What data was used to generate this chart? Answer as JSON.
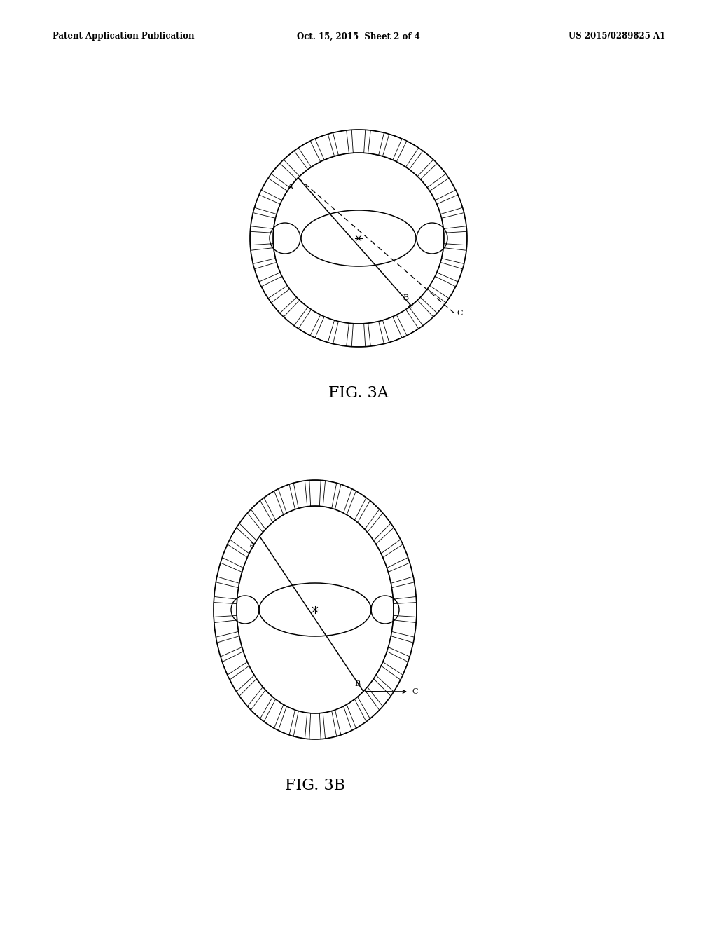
{
  "background_color": "#ffffff",
  "header_left": "Patent Application Publication",
  "header_center": "Oct. 15, 2015  Sheet 2 of 4",
  "header_right": "US 2015/0289825 A1",
  "fig3a_label": "FIG. 3A",
  "fig3b_label": "FIG. 3B",
  "label_fontsize": 8,
  "fig_label_fontsize": 16,
  "header_fontsize": 8.5,
  "n_ticks": 36,
  "line_color": "#000000"
}
